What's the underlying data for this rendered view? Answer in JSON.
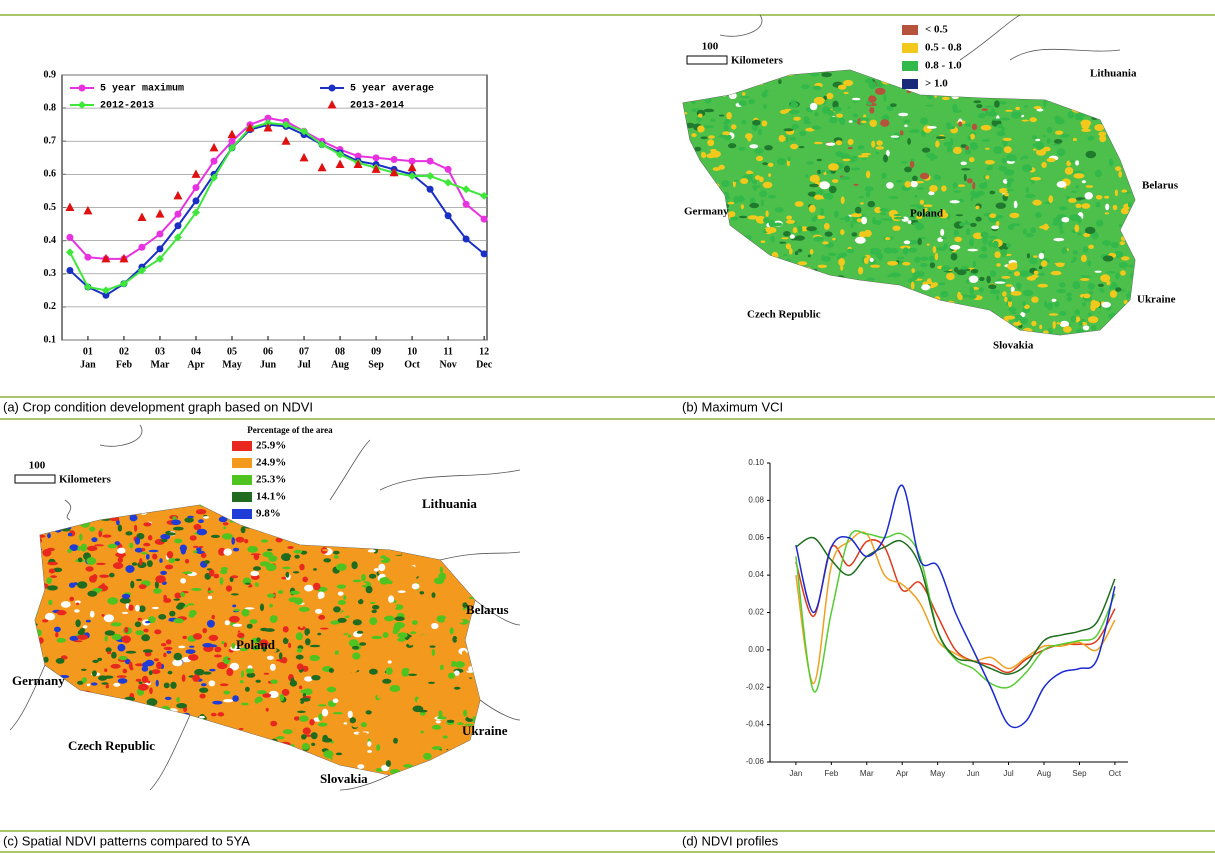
{
  "captions": [
    "(a) Crop condition development graph based on NDVI",
    "(b) Maximum VCI",
    "(c) Spatial NDVI patterns compared to 5YA",
    "(d) NDVI profiles"
  ],
  "chart_data": [
    {
      "type": "line",
      "x": [
        0.5,
        1,
        1.5,
        2,
        2.5,
        3,
        3.5,
        4,
        4.5,
        5,
        5.5,
        6,
        6.5,
        7,
        7.5,
        8,
        8.5,
        9,
        9.5,
        10,
        10.5,
        11,
        11.5,
        12
      ],
      "xlim": [
        0.28,
        12.08
      ],
      "xticks": [
        {
          "value": 1,
          "label": "01"
        },
        {
          "value": 2,
          "label": "02"
        },
        {
          "value": 3,
          "label": "03"
        },
        {
          "value": 4,
          "label": "04"
        },
        {
          "value": 5,
          "label": "05"
        },
        {
          "value": 6,
          "label": "06"
        },
        {
          "value": 7,
          "label": "07"
        },
        {
          "value": 8,
          "label": "08"
        },
        {
          "value": 9,
          "label": "09"
        },
        {
          "value": 10,
          "label": "10"
        },
        {
          "value": 11,
          "label": "11"
        },
        {
          "value": 12,
          "label": "12"
        }
      ],
      "xtick_months": [
        "Jan",
        "Feb",
        "Mar",
        "Apr",
        "May",
        "Jun",
        "Jul",
        "Aug",
        "Sep",
        "Oct",
        "Nov",
        "Dec"
      ],
      "ylim": [
        0.1,
        0.9
      ],
      "yticks": [
        0.1,
        0.2,
        0.3,
        0.4,
        0.5,
        0.6,
        0.7,
        0.8,
        0.9
      ],
      "grid": true,
      "legend": "top",
      "series": [
        {
          "name": "5 year maximum",
          "color": "#e832e0",
          "marker": "circle",
          "values": [
            0.41,
            0.35,
            0.345,
            0.345,
            0.38,
            0.42,
            0.48,
            0.56,
            0.64,
            0.7,
            0.75,
            0.77,
            0.76,
            0.73,
            0.7,
            0.675,
            0.655,
            0.65,
            0.645,
            0.64,
            0.64,
            0.615,
            0.51,
            0.465
          ]
        },
        {
          "name": "5 year average",
          "color": "#1a2fc4",
          "marker": "circle",
          "values": [
            0.31,
            0.26,
            0.235,
            0.27,
            0.32,
            0.375,
            0.445,
            0.52,
            0.6,
            0.68,
            0.735,
            0.75,
            0.745,
            0.72,
            0.69,
            0.665,
            0.64,
            0.63,
            0.615,
            0.6,
            0.555,
            0.475,
            0.405,
            0.36
          ]
        },
        {
          "name": "2012-2013",
          "color": "#3ee83a",
          "marker": "diamond",
          "values": [
            0.365,
            0.26,
            0.25,
            0.27,
            0.31,
            0.345,
            0.41,
            0.485,
            0.59,
            0.68,
            0.74,
            0.755,
            0.75,
            0.73,
            0.69,
            0.66,
            0.635,
            0.62,
            0.605,
            0.595,
            0.595,
            0.575,
            0.555,
            0.535
          ]
        },
        {
          "name": "2013-2014",
          "color": "#e01010",
          "marker": "triangle",
          "style": "markers",
          "values": [
            0.5,
            0.49,
            0.345,
            0.345,
            0.47,
            0.48,
            0.535,
            0.6,
            0.68,
            0.72,
            0.74,
            0.74,
            0.7,
            0.65,
            0.62,
            0.63,
            0.63,
            0.615,
            0.605,
            0.62,
            null,
            null,
            null,
            null
          ]
        }
      ]
    },
    {
      "type": "line",
      "smooth": true,
      "x": [
        1,
        1.5,
        2,
        2.5,
        3,
        3.5,
        4,
        4.5,
        5,
        5.5,
        6,
        6.5,
        7,
        7.5,
        8,
        8.5,
        9,
        9.5,
        10
      ],
      "xlim": [
        0.27,
        10.37
      ],
      "xticks": [
        {
          "value": 1,
          "label": "Jan"
        },
        {
          "value": 2,
          "label": "Feb"
        },
        {
          "value": 3,
          "label": "Mar"
        },
        {
          "value": 4,
          "label": "Apr"
        },
        {
          "value": 5,
          "label": "May"
        },
        {
          "value": 6,
          "label": "Jun"
        },
        {
          "value": 7,
          "label": "Jul"
        },
        {
          "value": 8,
          "label": "Aug"
        },
        {
          "value": 9,
          "label": "Sep"
        },
        {
          "value": 10,
          "label": "Oct"
        }
      ],
      "ylim": [
        -0.06,
        0.1
      ],
      "yticks": [
        -0.06,
        -0.04,
        -0.02,
        {
          "value": 0,
          "label": "0.00"
        },
        0.02,
        0.04,
        0.06,
        0.08,
        {
          "value": 0.1,
          "label": "0.10"
        }
      ],
      "grid": false,
      "series": [
        {
          "color": "#e03a1a",
          "values": [
            0.047,
            0.018,
            0.055,
            0.045,
            0.058,
            0.055,
            0.032,
            0.036,
            0.018,
            0.0,
            -0.006,
            -0.008,
            -0.012,
            -0.005,
            0.0,
            0.003,
            0.003,
            0.005,
            0.022
          ]
        },
        {
          "color": "#f0a020",
          "values": [
            0.04,
            -0.018,
            0.045,
            0.058,
            0.062,
            0.04,
            0.035,
            0.025,
            0.005,
            -0.002,
            -0.006,
            -0.004,
            -0.01,
            -0.004,
            0.002,
            0.002,
            0.004,
            0.0,
            0.016
          ]
        },
        {
          "color": "#55cc33",
          "values": [
            0.05,
            -0.022,
            0.02,
            0.06,
            0.062,
            0.06,
            0.062,
            0.05,
            0.01,
            -0.005,
            -0.01,
            -0.018,
            -0.02,
            -0.012,
            0.0,
            0.003,
            0.005,
            0.008,
            0.03
          ]
        },
        {
          "color": "#1e6e1e",
          "values": [
            0.055,
            0.06,
            0.048,
            0.04,
            0.05,
            0.055,
            0.058,
            0.045,
            0.01,
            -0.004,
            -0.006,
            -0.01,
            -0.013,
            -0.008,
            0.005,
            0.008,
            0.01,
            0.015,
            0.038
          ]
        },
        {
          "color": "#1a2ad0",
          "values": [
            0.056,
            0.02,
            0.055,
            0.06,
            0.05,
            0.06,
            0.088,
            0.048,
            0.045,
            0.02,
            0.0,
            -0.02,
            -0.04,
            -0.038,
            -0.02,
            -0.012,
            -0.01,
            -0.005,
            0.034
          ]
        }
      ]
    }
  ],
  "maps": [
    {
      "scale_label": "100",
      "scale_unit": "Kilometers",
      "countries": [
        "Lithuania",
        "Belarus",
        "Germany",
        "Poland",
        "Czech Republic",
        "Ukraine",
        "Slovakia"
      ],
      "legend": [
        {
          "label": "< 0.5",
          "color": "#b5533c"
        },
        {
          "label": "0.5 - 0.8",
          "color": "#f2c81c"
        },
        {
          "label": "0.8 - 1.0",
          "color": "#33b84a"
        },
        {
          "label": "> 1.0",
          "color": "#1a2a7a"
        }
      ]
    },
    {
      "scale_label": "100",
      "scale_unit": "Kilometers",
      "legend_title": "Percentage of the area",
      "countries": [
        "Lithuania",
        "Belarus",
        "Germany",
        "Poland",
        "Czech Republic",
        "Ukraine",
        "Slovakia"
      ],
      "legend": [
        {
          "label": "25.9%",
          "color": "#e8281e"
        },
        {
          "label": "24.9%",
          "color": "#f39a1e"
        },
        {
          "label": "25.3%",
          "color": "#4fc31f"
        },
        {
          "label": "14.1%",
          "color": "#1f6b1f"
        },
        {
          "label": "9.8%",
          "color": "#1f3cd6"
        }
      ]
    }
  ]
}
